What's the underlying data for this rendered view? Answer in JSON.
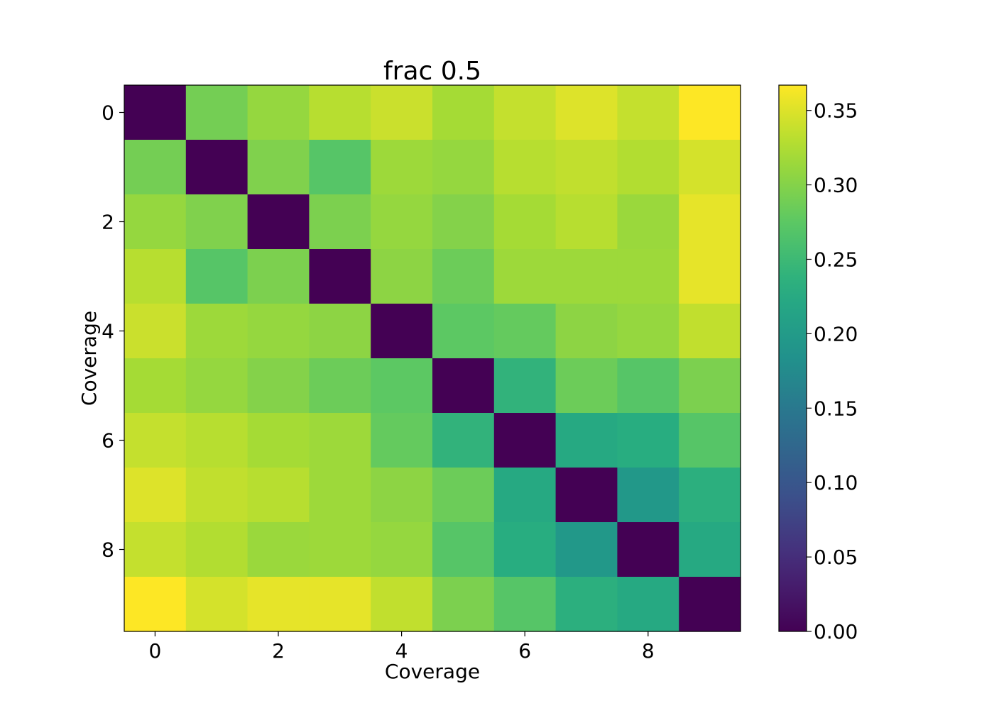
{
  "chart_data": {
    "type": "heatmap",
    "title": "frac 0.5",
    "xlabel": "Coverage",
    "ylabel": "Coverage",
    "x_ticks": [
      "0",
      "2",
      "4",
      "6",
      "8"
    ],
    "y_ticks": [
      "0",
      "2",
      "4",
      "6",
      "8"
    ],
    "colormap": "viridis",
    "colorbar": {
      "vmin": 0.0,
      "vmax": 0.367,
      "ticks": [
        "0.00",
        "0.05",
        "0.10",
        "0.15",
        "0.20",
        "0.25",
        "0.30",
        "0.35"
      ]
    },
    "matrix": [
      [
        0.0,
        0.29,
        0.31,
        0.33,
        0.34,
        0.32,
        0.337,
        0.35,
        0.337,
        0.367
      ],
      [
        0.29,
        0.0,
        0.297,
        0.27,
        0.315,
        0.31,
        0.33,
        0.335,
        0.327,
        0.345
      ],
      [
        0.31,
        0.297,
        0.0,
        0.295,
        0.31,
        0.3,
        0.32,
        0.33,
        0.313,
        0.355
      ],
      [
        0.33,
        0.27,
        0.295,
        0.0,
        0.305,
        0.285,
        0.315,
        0.315,
        0.315,
        0.355
      ],
      [
        0.34,
        0.315,
        0.31,
        0.305,
        0.0,
        0.275,
        0.28,
        0.305,
        0.31,
        0.335
      ],
      [
        0.32,
        0.31,
        0.3,
        0.285,
        0.275,
        0.0,
        0.24,
        0.285,
        0.27,
        0.295
      ],
      [
        0.337,
        0.33,
        0.32,
        0.315,
        0.28,
        0.24,
        0.0,
        0.225,
        0.232,
        0.27
      ],
      [
        0.35,
        0.335,
        0.33,
        0.315,
        0.305,
        0.285,
        0.225,
        0.0,
        0.195,
        0.235
      ],
      [
        0.337,
        0.327,
        0.313,
        0.315,
        0.31,
        0.27,
        0.232,
        0.195,
        0.0,
        0.225
      ],
      [
        0.367,
        0.345,
        0.355,
        0.355,
        0.335,
        0.295,
        0.27,
        0.235,
        0.225,
        0.0
      ]
    ]
  }
}
